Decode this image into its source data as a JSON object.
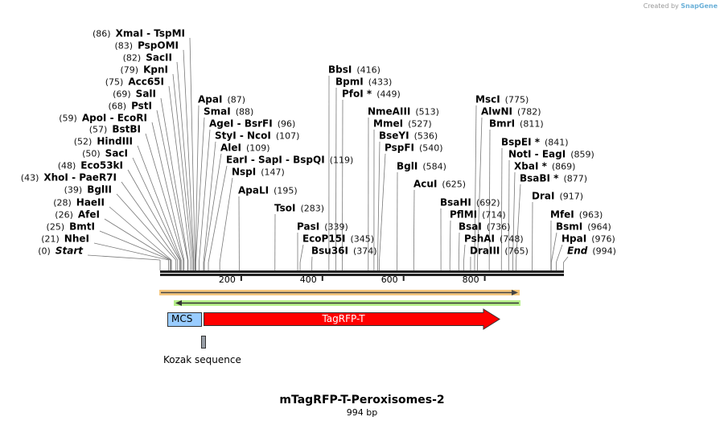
{
  "credit": {
    "prefix": "Created by",
    "brand": "SnapGene"
  },
  "title": "mTagRFP-T-Peroxisomes-2",
  "length": "994 bp",
  "ticks": [
    "200",
    "400",
    "600",
    "800"
  ],
  "features": {
    "mcs": "MCS",
    "tagrfp": "TagRFP-T",
    "kozak": "Kozak sequence"
  },
  "colors": {
    "tagrfp": "#ff0000",
    "mcs": "#99ccff",
    "orange": "#f5c77e",
    "green": "#b6f08a",
    "kozak": "#9aa0a8"
  },
  "enzymes": [
    {
      "name": "XmaI  - TspMI",
      "pos": 86
    },
    {
      "name": "PspOMI",
      "pos": 83
    },
    {
      "name": "SacII",
      "pos": 82
    },
    {
      "name": "KpnI",
      "pos": 79
    },
    {
      "name": "Acc65I",
      "pos": 75
    },
    {
      "name": "SalI",
      "pos": 69
    },
    {
      "name": "PstI",
      "pos": 68
    },
    {
      "name": "ApoI  - EcoRI",
      "pos": 59
    },
    {
      "name": "BstBI",
      "pos": 57
    },
    {
      "name": "HindIII",
      "pos": 52
    },
    {
      "name": "SacI",
      "pos": 50
    },
    {
      "name": "Eco53kI",
      "pos": 48
    },
    {
      "name": "XhoI  - PaeR7I",
      "pos": 43
    },
    {
      "name": "BglII",
      "pos": 39
    },
    {
      "name": "HaeII",
      "pos": 28
    },
    {
      "name": "AfeI",
      "pos": 26
    },
    {
      "name": "BmtI",
      "pos": 25
    },
    {
      "name": "NheI",
      "pos": 21
    },
    {
      "name": "Start",
      "pos": 0,
      "italic": true
    },
    {
      "name": "ApaI",
      "pos": 87
    },
    {
      "name": "SmaI",
      "pos": 88
    },
    {
      "name": "AgeI  - BsrFI",
      "pos": 96
    },
    {
      "name": "StyI  - NcoI",
      "pos": 107
    },
    {
      "name": "AleI",
      "pos": 109
    },
    {
      "name": "EarI  - SapI  - BspQI",
      "pos": 119
    },
    {
      "name": "NspI",
      "pos": 147
    },
    {
      "name": "ApaLI",
      "pos": 195
    },
    {
      "name": "TsoI",
      "pos": 283
    },
    {
      "name": "PasI",
      "pos": 339
    },
    {
      "name": "EcoP15I",
      "pos": 345
    },
    {
      "name": "Bsu36I",
      "pos": 374
    },
    {
      "name": "BbsI",
      "pos": 416
    },
    {
      "name": "BpmI",
      "pos": 433
    },
    {
      "name": "PfoI *",
      "pos": 449
    },
    {
      "name": "NmeAIII",
      "pos": 513
    },
    {
      "name": "MmeI",
      "pos": 527
    },
    {
      "name": "BseYI",
      "pos": 536
    },
    {
      "name": "PspFI",
      "pos": 540
    },
    {
      "name": "BglI",
      "pos": 584
    },
    {
      "name": "AcuI",
      "pos": 625
    },
    {
      "name": "BsaHI",
      "pos": 692
    },
    {
      "name": "PflMI",
      "pos": 714
    },
    {
      "name": "BsaI",
      "pos": 736
    },
    {
      "name": "PshAI",
      "pos": 748
    },
    {
      "name": "DraIII",
      "pos": 765
    },
    {
      "name": "MscI",
      "pos": 775
    },
    {
      "name": "AlwNI",
      "pos": 782
    },
    {
      "name": "BmrI",
      "pos": 811
    },
    {
      "name": "BspEI *",
      "pos": 841
    },
    {
      "name": "NotI  - EagI",
      "pos": 859
    },
    {
      "name": "XbaI *",
      "pos": 869
    },
    {
      "name": "BsaBI *",
      "pos": 877
    },
    {
      "name": "DraI",
      "pos": 917
    },
    {
      "name": "MfeI",
      "pos": 963
    },
    {
      "name": "BsmI",
      "pos": 964
    },
    {
      "name": "HpaI",
      "pos": 976
    },
    {
      "name": "End",
      "pos": 994,
      "italic": true
    }
  ]
}
